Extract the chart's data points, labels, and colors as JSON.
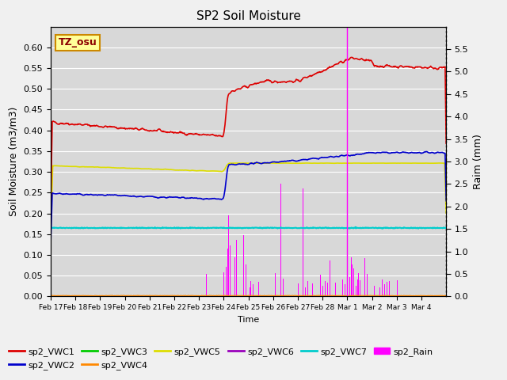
{
  "title": "SP2 Soil Moisture",
  "ylabel_left": "Soil Moisture (m3/m3)",
  "ylabel_right": "Raim (mm)",
  "xlabel": "Time",
  "annotation": "TZ_osu",
  "ylim_left": [
    0.0,
    0.65
  ],
  "ylim_right": [
    0.0,
    6.0
  ],
  "yticks_left": [
    0.0,
    0.05,
    0.1,
    0.15,
    0.2,
    0.25,
    0.3,
    0.35,
    0.4,
    0.45,
    0.5,
    0.55,
    0.6
  ],
  "yticks_right": [
    0.0,
    0.5,
    1.0,
    1.5,
    2.0,
    2.5,
    3.0,
    3.5,
    4.0,
    4.5,
    5.0,
    5.5
  ],
  "colors": {
    "sp2_VWC1": "#dd0000",
    "sp2_VWC2": "#0000cc",
    "sp2_VWC3": "#00cc00",
    "sp2_VWC4": "#ff8800",
    "sp2_VWC5": "#dddd00",
    "sp2_VWC6": "#9900bb",
    "sp2_VWC7": "#00cccc",
    "sp2_Rain": "#ff00ff"
  },
  "n_days": 16,
  "date_ticks": [
    "Feb 17",
    "Feb 18",
    "Feb 19",
    "Feb 20",
    "Feb 21",
    "Feb 22",
    "Feb 23",
    "Feb 24",
    "Feb 25",
    "Feb 26",
    "Feb 27",
    "Feb 28",
    "Mar 1",
    "Mar 2",
    "Mar 3",
    "Mar 4"
  ]
}
